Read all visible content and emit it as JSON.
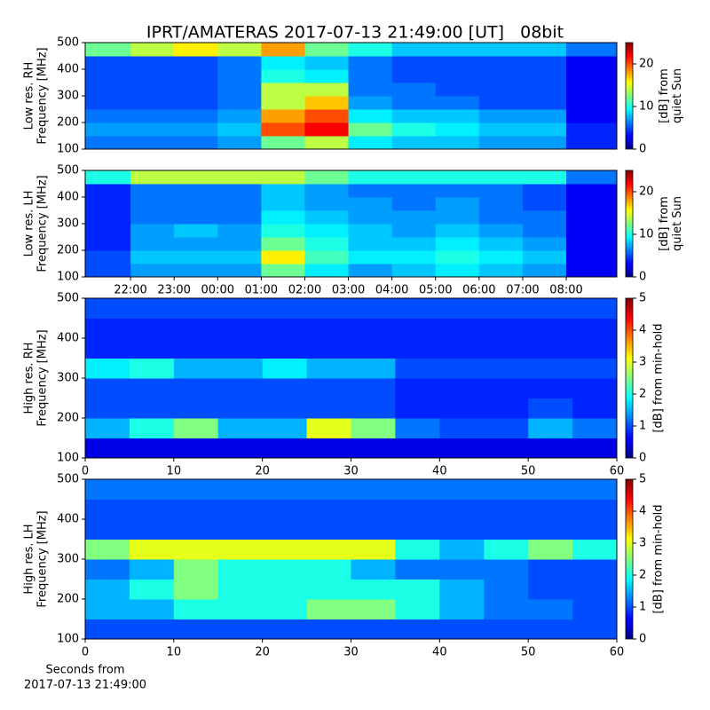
{
  "chart_data": [
    {
      "type": "heatmap",
      "title": "IPRT/AMATERAS 2017-07-13 21:49:00 [UT]   08bit",
      "ylabel": [
        "Low res. RH",
        "Frequency [MHz]"
      ],
      "colorbar_label": [
        "[dB] from",
        "quiet Sun"
      ],
      "xlim": [
        20.96,
        33.16
      ],
      "ylim": [
        100,
        500
      ],
      "yticks": [
        100,
        200,
        300,
        400,
        500
      ],
      "clim": [
        0,
        25
      ],
      "cticks": [
        0,
        10,
        20
      ],
      "colormap": "jet",
      "xbins": [
        20.96,
        22,
        23,
        24,
        25,
        26,
        27,
        28,
        29,
        30,
        31,
        32,
        33.16
      ],
      "ybins": [
        100,
        150,
        200,
        250,
        300,
        350,
        400,
        450,
        500
      ],
      "values": [
        [
          6,
          6,
          6,
          7,
          12,
          14,
          9,
          8,
          8,
          7,
          7,
          4
        ],
        [
          7,
          7,
          7,
          8,
          20,
          22,
          12,
          10,
          9,
          8,
          8,
          4
        ],
        [
          6,
          6,
          6,
          7,
          18,
          20,
          9,
          8,
          8,
          7,
          7,
          3
        ],
        [
          5,
          5,
          5,
          6,
          14,
          17,
          7,
          6,
          6,
          5,
          5,
          3
        ],
        [
          5,
          5,
          5,
          6,
          14,
          14,
          6,
          6,
          5,
          5,
          5,
          3
        ],
        [
          5,
          5,
          5,
          6,
          10,
          9,
          6,
          5,
          5,
          5,
          5,
          3
        ],
        [
          5,
          5,
          5,
          6,
          9,
          8,
          6,
          5,
          5,
          5,
          5,
          3
        ],
        [
          12,
          14,
          16,
          14,
          18,
          12,
          10,
          8,
          8,
          8,
          8,
          6
        ]
      ]
    },
    {
      "type": "heatmap",
      "ylabel": [
        "Low res. LH",
        "Frequency [MHz]"
      ],
      "colorbar_label": [
        "[dB] from",
        "quiet Sun"
      ],
      "xlim": [
        20.96,
        33.16
      ],
      "xticks": [
        {
          "value": 22,
          "label": "22:00"
        },
        {
          "value": 23,
          "label": "23:00"
        },
        {
          "value": 24,
          "label": "00:00"
        },
        {
          "value": 25,
          "label": "01:00"
        },
        {
          "value": 26,
          "label": "02:00"
        },
        {
          "value": 27,
          "label": "03:00"
        },
        {
          "value": 28,
          "label": "04:00"
        },
        {
          "value": 29,
          "label": "05:00"
        },
        {
          "value": 30,
          "label": "06:00"
        },
        {
          "value": 31,
          "label": "07:00"
        },
        {
          "value": 32,
          "label": "08:00"
        }
      ],
      "ylim": [
        100,
        500
      ],
      "yticks": [
        100,
        200,
        300,
        400,
        500
      ],
      "clim": [
        0,
        25
      ],
      "cticks": [
        0,
        10,
        20
      ],
      "colormap": "jet",
      "xbins": [
        20.96,
        22,
        23,
        24,
        25,
        26,
        27,
        28,
        29,
        30,
        31,
        32,
        33.16
      ],
      "ybins": [
        100,
        150,
        200,
        250,
        300,
        350,
        400,
        450,
        500
      ],
      "values": [
        [
          5,
          7,
          7,
          7,
          12,
          9,
          7,
          8,
          9,
          8,
          7,
          3
        ],
        [
          5,
          8,
          8,
          8,
          16,
          11,
          9,
          9,
          10,
          9,
          8,
          3
        ],
        [
          4,
          7,
          7,
          7,
          12,
          10,
          8,
          8,
          9,
          8,
          7,
          3
        ],
        [
          4,
          7,
          8,
          7,
          10,
          9,
          8,
          7,
          8,
          7,
          6,
          3
        ],
        [
          4,
          6,
          6,
          6,
          9,
          8,
          7,
          7,
          7,
          6,
          6,
          3
        ],
        [
          4,
          6,
          6,
          6,
          8,
          7,
          7,
          6,
          7,
          6,
          5,
          3
        ],
        [
          4,
          6,
          6,
          6,
          8,
          7,
          6,
          6,
          6,
          6,
          5,
          3
        ],
        [
          10,
          14,
          14,
          14,
          14,
          12,
          10,
          10,
          10,
          10,
          10,
          6
        ]
      ]
    },
    {
      "type": "heatmap",
      "ylabel": [
        "High res. RH",
        "Frequency [MHz]"
      ],
      "colorbar_label": [
        "[dB] from min-hold"
      ],
      "xlim": [
        0,
        60
      ],
      "xticks": [
        0,
        10,
        20,
        30,
        40,
        50,
        60
      ],
      "ylim": [
        100,
        500
      ],
      "yticks": [
        100,
        200,
        300,
        400,
        500
      ],
      "clim": [
        0,
        5
      ],
      "cticks": [
        0,
        1,
        2,
        3,
        4,
        5
      ],
      "colormap": "jet",
      "xbins": [
        0,
        5,
        10,
        15,
        20,
        25,
        30,
        35,
        40,
        45,
        50,
        55,
        60
      ],
      "ybins": [
        100,
        150,
        200,
        250,
        300,
        350,
        400,
        450,
        500
      ],
      "values": [
        [
          0.5,
          0.5,
          0.5,
          0.5,
          0.5,
          0.5,
          0.5,
          0.5,
          0.5,
          0.5,
          0.5,
          0.5
        ],
        [
          1.5,
          2,
          2.5,
          1.5,
          1.5,
          3,
          2.5,
          1.2,
          1,
          1,
          1.5,
          1.2
        ],
        [
          1,
          1,
          1,
          1,
          1,
          1,
          1,
          0.8,
          0.8,
          0.8,
          1,
          0.8
        ],
        [
          1,
          1,
          1,
          1,
          1,
          1,
          1,
          0.8,
          0.8,
          0.8,
          0.8,
          0.8
        ],
        [
          1.8,
          2,
          1.5,
          1.5,
          1.8,
          1.5,
          1.5,
          1,
          1,
          1,
          1,
          1
        ],
        [
          0.8,
          0.8,
          0.8,
          0.8,
          0.8,
          0.8,
          0.8,
          0.8,
          0.8,
          0.8,
          0.8,
          0.8
        ],
        [
          0.8,
          0.8,
          0.8,
          0.8,
          0.8,
          0.8,
          0.8,
          0.8,
          0.8,
          0.8,
          0.8,
          0.8
        ],
        [
          1,
          1,
          1,
          1,
          1,
          1,
          1,
          1,
          1,
          1,
          1,
          1
        ]
      ]
    },
    {
      "type": "heatmap",
      "ylabel": [
        "High res. LH",
        "Frequency [MHz]"
      ],
      "colorbar_label": [
        "[dB] from min-hold"
      ],
      "xlabel": [
        "Seconds from",
        "2017-07-13 21:49:00"
      ],
      "xlim": [
        0,
        60
      ],
      "xticks": [
        0,
        10,
        20,
        30,
        40,
        50,
        60
      ],
      "ylim": [
        100,
        500
      ],
      "yticks": [
        100,
        200,
        300,
        400,
        500
      ],
      "clim": [
        0,
        5
      ],
      "cticks": [
        0,
        1,
        2,
        3,
        4,
        5
      ],
      "colormap": "jet",
      "xbins": [
        0,
        5,
        10,
        15,
        20,
        25,
        30,
        35,
        40,
        45,
        50,
        55,
        60
      ],
      "ybins": [
        100,
        150,
        200,
        250,
        300,
        350,
        400,
        450,
        500
      ],
      "values": [
        [
          1,
          1,
          1,
          1,
          1,
          1,
          1,
          1,
          1,
          1,
          1,
          1
        ],
        [
          1.5,
          1.5,
          2,
          2,
          2,
          2.5,
          2.5,
          2,
          1.5,
          1.2,
          1.2,
          1
        ],
        [
          1.5,
          2,
          2.5,
          2,
          2,
          2,
          2,
          2,
          1.5,
          1.2,
          1,
          1
        ],
        [
          1.2,
          1.5,
          2.5,
          2,
          2,
          2,
          1.5,
          1.2,
          1.2,
          1.2,
          1,
          1
        ],
        [
          2.5,
          3,
          3,
          3,
          3,
          3,
          3,
          2,
          1.5,
          2,
          2.5,
          2
        ],
        [
          1,
          1,
          1,
          1,
          1,
          1,
          1,
          1,
          1,
          1,
          1,
          1
        ],
        [
          1,
          1,
          1,
          1,
          1,
          1,
          1,
          1,
          1,
          1,
          1,
          1
        ],
        [
          1.2,
          1.2,
          1.2,
          1.2,
          1.2,
          1.2,
          1.2,
          1.2,
          1.2,
          1.2,
          1.2,
          1.2
        ]
      ]
    }
  ]
}
